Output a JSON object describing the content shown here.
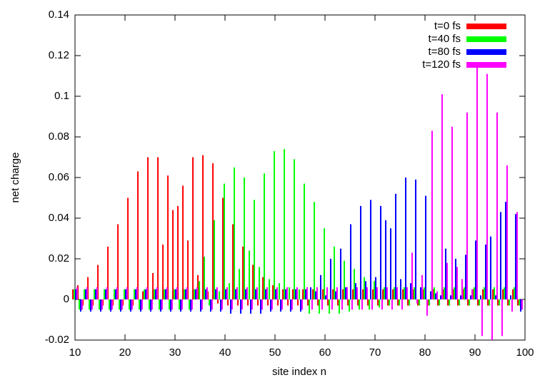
{
  "chart_data": {
    "type": "bar",
    "x_label": "site index n",
    "y_label": "net charge",
    "x": [
      10,
      11,
      12,
      13,
      14,
      15,
      16,
      17,
      18,
      19,
      20,
      21,
      22,
      23,
      24,
      25,
      26,
      27,
      28,
      29,
      30,
      31,
      32,
      33,
      34,
      35,
      36,
      37,
      38,
      39,
      40,
      41,
      42,
      43,
      44,
      45,
      46,
      47,
      48,
      49,
      50,
      51,
      52,
      53,
      54,
      55,
      56,
      57,
      58,
      59,
      60,
      61,
      62,
      63,
      64,
      65,
      66,
      67,
      68,
      69,
      70,
      71,
      72,
      73,
      74,
      75,
      76,
      77,
      78,
      79,
      80,
      81,
      82,
      83,
      84,
      85,
      86,
      87,
      88,
      89,
      90,
      91,
      92,
      93,
      94,
      95,
      96,
      97,
      98,
      99
    ],
    "series": [
      {
        "name": "t=0 fs",
        "color": "#ff0000",
        "values": [
          0.005,
          0.007,
          -0.003,
          0.011,
          -0.003,
          0.017,
          -0.003,
          0.026,
          -0.003,
          0.037,
          -0.003,
          0.05,
          -0.003,
          0.063,
          0.004,
          0.07,
          0.013,
          0.07,
          0.027,
          0.061,
          0.044,
          0.046,
          0.056,
          0.029,
          0.07,
          0.012,
          0.071,
          0.004,
          0.067,
          -0.002,
          0.05,
          -0.003,
          0.037,
          -0.003,
          0.026,
          -0.003,
          0.017,
          -0.003,
          0.011,
          -0.003,
          0.007,
          -0.003,
          0.005,
          -0.003,
          0.005,
          -0.003,
          0.005,
          -0.003,
          0.005,
          -0.003,
          0.005,
          -0.003,
          0.005,
          -0.003,
          0.005,
          -0.003,
          0.005,
          -0.003,
          0.005,
          -0.003,
          0.005,
          -0.003,
          0.005,
          -0.003,
          0.005,
          -0.003,
          0.005,
          -0.003,
          0.005,
          -0.003,
          0.005,
          -0.003,
          0.005,
          -0.003,
          0.005,
          -0.003,
          0.005,
          -0.003,
          0.005,
          -0.003,
          0.005,
          -0.003,
          0.005,
          -0.003,
          0.005,
          -0.003,
          0.005,
          -0.003,
          0.005,
          -0.003
        ]
      },
      {
        "name": "t=40 fs",
        "color": "#00ff00",
        "values": [
          0.005,
          -0.005,
          0.005,
          -0.005,
          0.005,
          -0.005,
          0.005,
          -0.005,
          0.005,
          -0.005,
          0.005,
          -0.005,
          0.005,
          -0.005,
          0.005,
          -0.005,
          0.005,
          -0.005,
          0.005,
          -0.005,
          0.005,
          -0.005,
          0.005,
          -0.005,
          0.005,
          0.009,
          0.021,
          -0.003,
          0.039,
          0.004,
          0.057,
          0.008,
          0.065,
          0.015,
          0.06,
          0.024,
          0.049,
          0.016,
          0.062,
          0.01,
          0.073,
          0.008,
          0.074,
          0.006,
          0.069,
          0.005,
          0.057,
          -0.007,
          0.048,
          -0.007,
          0.035,
          -0.007,
          0.026,
          -0.007,
          0.019,
          -0.006,
          0.015,
          -0.005,
          0.011,
          -0.005,
          0.009,
          -0.004,
          0.006,
          -0.003,
          0.006,
          -0.003,
          0.006,
          -0.003,
          0.006,
          -0.003,
          0.006,
          -0.003,
          0.006,
          -0.003,
          0.006,
          -0.003,
          0.006,
          -0.003,
          0.006,
          -0.003,
          0.006,
          -0.003,
          0.006,
          -0.003,
          0.006,
          -0.003,
          0.006,
          -0.003,
          0.006,
          -0.003
        ]
      },
      {
        "name": "t=80 fs",
        "color": "#0000ff",
        "values": [
          0.005,
          -0.006,
          0.005,
          -0.006,
          0.005,
          -0.006,
          0.005,
          -0.006,
          0.005,
          -0.006,
          0.005,
          -0.006,
          0.005,
          -0.006,
          0.005,
          -0.006,
          0.005,
          -0.006,
          0.005,
          -0.006,
          0.005,
          -0.006,
          0.005,
          -0.006,
          0.005,
          -0.006,
          0.005,
          -0.006,
          0.005,
          -0.006,
          0.005,
          -0.007,
          0.005,
          -0.007,
          0.005,
          -0.007,
          0.005,
          -0.007,
          0.005,
          -0.006,
          0.005,
          -0.006,
          0.005,
          -0.006,
          0.005,
          -0.006,
          0.005,
          0.006,
          0.004,
          0.012,
          0.002,
          0.02,
          0.004,
          0.025,
          0.006,
          0.037,
          0.008,
          0.046,
          0.009,
          0.049,
          0.011,
          0.046,
          0.039,
          0.035,
          0.052,
          0.01,
          0.06,
          0.008,
          0.059,
          0.006,
          0.051,
          0.004,
          0.003,
          0.002,
          0.025,
          0.002,
          0.02,
          0.002,
          0.022,
          0.002,
          0.029,
          0.002,
          0.027,
          0.031,
          0.002,
          0.043,
          0.048,
          0.002,
          0.042,
          -0.006
        ]
      },
      {
        "name": "t=120 fs",
        "color": "#ff00ff",
        "values": [
          0.006,
          -0.005,
          0.006,
          -0.005,
          0.006,
          -0.005,
          0.006,
          -0.005,
          0.006,
          -0.005,
          0.006,
          -0.005,
          0.006,
          -0.005,
          0.006,
          -0.005,
          0.006,
          -0.005,
          0.006,
          -0.005,
          0.006,
          -0.005,
          0.006,
          -0.005,
          0.006,
          -0.005,
          0.006,
          -0.005,
          0.006,
          -0.005,
          0.006,
          -0.005,
          0.006,
          -0.005,
          0.006,
          -0.005,
          0.006,
          -0.005,
          0.006,
          -0.005,
          0.006,
          -0.005,
          0.006,
          -0.005,
          0.006,
          -0.005,
          0.006,
          -0.005,
          0.006,
          -0.005,
          0.006,
          -0.005,
          0.006,
          -0.005,
          0.006,
          -0.005,
          0.006,
          -0.005,
          0.006,
          -0.005,
          0.006,
          -0.005,
          0.006,
          -0.005,
          0.006,
          -0.005,
          0.006,
          0.023,
          -0.002,
          0.012,
          -0.008,
          0.083,
          0.004,
          0.101,
          0.018,
          0.085,
          0.016,
          0.01,
          0.092,
          0.005,
          0.115,
          -0.018,
          0.111,
          -0.02,
          0.092,
          -0.018,
          0.066,
          -0.006,
          0.043,
          -0.005
        ]
      }
    ],
    "xlim": [
      10,
      100
    ],
    "xticks": [
      10,
      20,
      30,
      40,
      50,
      60,
      70,
      80,
      90,
      100
    ],
    "ylim": [
      -0.02,
      0.14
    ],
    "yticks": [
      -0.02,
      0,
      0.02,
      0.04,
      0.06,
      0.08,
      0.1,
      0.12,
      0.14
    ],
    "legend": "top-right"
  }
}
